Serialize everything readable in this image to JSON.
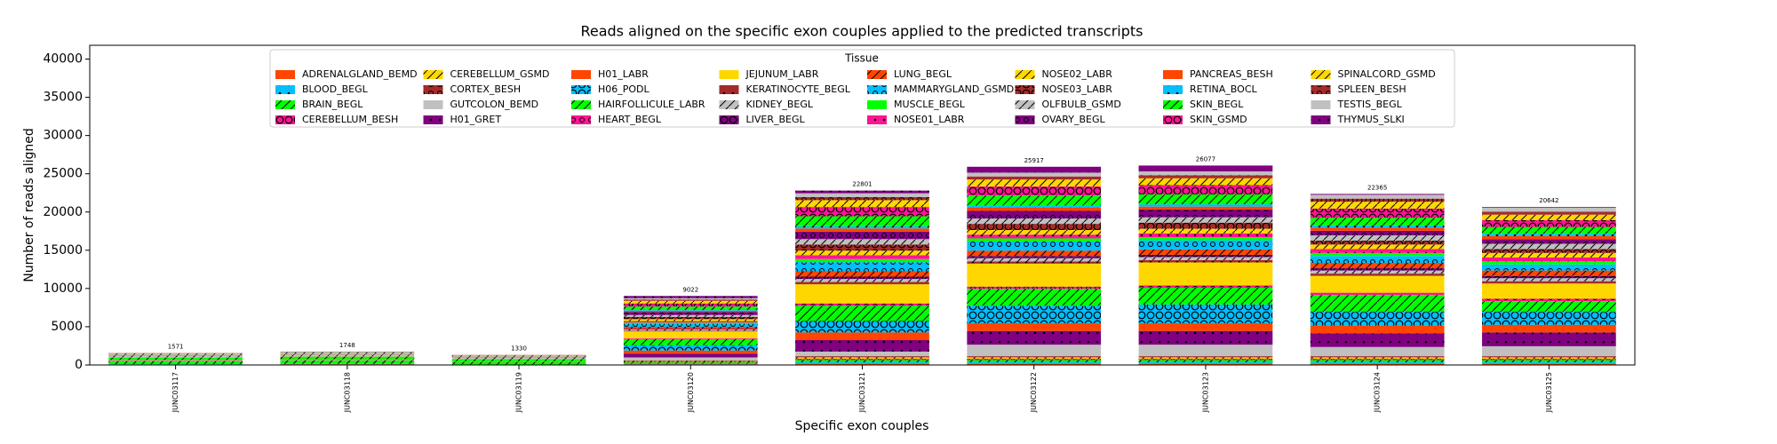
{
  "chart_data": {
    "type": "stacked_bar",
    "title": "Reads aligned on the specific exon couples applied to the predicted transcripts",
    "x_label": "Specific exon couples",
    "y_label": "Number of reads aligned",
    "legend_title": "Tissue",
    "categories": [
      "JUNC03117",
      "JUNC03118",
      "JUNC03119",
      "JUNC03120",
      "JUNC03121",
      "JUNC03122",
      "JUNC03123",
      "JUNC03124",
      "JUNC03125"
    ],
    "totals": [
      1571,
      1748,
      1330,
      9022,
      22801,
      25917,
      26077,
      22365,
      20642
    ],
    "ylim": [
      0,
      41800
    ],
    "yticks": [
      0,
      5000,
      10000,
      15000,
      20000,
      25000,
      30000,
      35000,
      40000
    ],
    "series": [
      {
        "name": "ADRENALGLAND_BEMD",
        "color": "#ff4500",
        "values": [
          50,
          100,
          10,
          100,
          200,
          200,
          200,
          200,
          200
        ]
      },
      {
        "name": "BLOOD_BEGL",
        "color": "#00bfff",
        "hatch": ".",
        "values": [
          40,
          40,
          40,
          80,
          150,
          150,
          150,
          150,
          150
        ]
      },
      {
        "name": "BRAIN_BEGL",
        "color": "#00ff00",
        "hatch": "/",
        "values": [
          400,
          450,
          300,
          150,
          300,
          300,
          300,
          300,
          300
        ]
      },
      {
        "name": "CEREBELLUM_BESH",
        "color": "#ff1493",
        "hatch": "O",
        "values": [
          30,
          30,
          30,
          80,
          150,
          150,
          150,
          150,
          150
        ]
      },
      {
        "name": "CEREBELLUM_GSMD",
        "color": "#ffd700",
        "hatch": "/",
        "values": [
          20,
          20,
          20,
          100,
          200,
          200,
          200,
          200,
          200
        ]
      },
      {
        "name": "CORTEX_BESH",
        "color": "#a52a2a",
        "hatch": "o",
        "values": [
          20,
          20,
          20,
          80,
          150,
          150,
          150,
          150,
          150
        ]
      },
      {
        "name": "GUTCOLON_BEMD",
        "color": "#c0c0c0",
        "values": [
          30,
          30,
          10,
          400,
          600,
          1500,
          1500,
          1200,
          1300
        ]
      },
      {
        "name": "H01_GRET",
        "color": "#800080",
        "hatch": ".",
        "values": [
          20,
          20,
          20,
          500,
          1500,
          1800,
          1800,
          1800,
          1800
        ]
      },
      {
        "name": "H01_LABR",
        "color": "#ff4500",
        "values": [
          40,
          40,
          40,
          400,
          1000,
          1000,
          1000,
          1000,
          1000
        ]
      },
      {
        "name": "H06_PODL",
        "color": "#00bfff",
        "hatch": "O",
        "values": [
          10,
          10,
          10,
          700,
          1500,
          2300,
          2460,
          1800,
          1700
        ]
      },
      {
        "name": "HAIRFOLLICULE_LABR",
        "color": "#00ff00",
        "hatch": "/",
        "values": [
          300,
          330,
          250,
          800,
          2000,
          2200,
          2200,
          2200,
          1400
        ]
      },
      {
        "name": "HEART_BEGL",
        "color": "#ff1493",
        "hatch": "o",
        "values": [
          20,
          20,
          20,
          100,
          300,
          300,
          300,
          300,
          300
        ]
      },
      {
        "name": "JEJUNUM_LABR",
        "color": "#ffd700",
        "values": [
          20,
          20,
          20,
          900,
          2500,
          3000,
          3000,
          2200,
          2000
        ]
      },
      {
        "name": "KERATINOCYTE_BEGL",
        "color": "#a52a2a",
        "hatch": ".",
        "values": [
          10,
          10,
          10,
          100,
          300,
          300,
          300,
          300,
          300
        ]
      },
      {
        "name": "KIDNEY_BEGL",
        "color": "#c0c0c0",
        "hatch": "/",
        "values": [
          200,
          220,
          180,
          150,
          400,
          400,
          400,
          400,
          400
        ]
      },
      {
        "name": "LIVER_BEGL",
        "color": "#800080",
        "hatch": "O",
        "values": [
          20,
          20,
          20,
          100,
          300,
          300,
          300,
          300,
          300
        ]
      },
      {
        "name": "LUNG_BEGL",
        "color": "#ff4500",
        "hatch": "/",
        "values": [
          30,
          30,
          30,
          250,
          700,
          700,
          700,
          700,
          700
        ]
      },
      {
        "name": "MAMMARYGLAND_GSMD",
        "color": "#00bfff",
        "hatch": "o",
        "values": [
          10,
          10,
          10,
          400,
          1200,
          1200,
          1200,
          900,
          800
        ]
      },
      {
        "name": "MUSCLE_BEGL",
        "color": "#00ff00",
        "values": [
          20,
          20,
          20,
          150,
          400,
          400,
          400,
          400,
          400
        ]
      },
      {
        "name": "NOSE01_LABR",
        "color": "#ff1493",
        "hatch": ".",
        "values": [
          10,
          10,
          10,
          200,
          500,
          500,
          500,
          500,
          500
        ]
      },
      {
        "name": "NOSE02_LABR",
        "color": "#ffd700",
        "hatch": "/",
        "values": [
          20,
          20,
          20,
          250,
          600,
          600,
          600,
          600,
          600
        ]
      },
      {
        "name": "NOSE03_LABR",
        "color": "#a52a2a",
        "hatch": "O",
        "values": [
          10,
          10,
          10,
          300,
          800,
          800,
          800,
          500,
          500
        ]
      },
      {
        "name": "OLFBULB_GSMD",
        "color": "#c0c0c0",
        "hatch": "/",
        "values": [
          130,
          150,
          120,
          250,
          700,
          700,
          700,
          700,
          700
        ]
      },
      {
        "name": "OVARY_BEGL",
        "color": "#800080",
        "hatch": "o",
        "values": [
          10,
          10,
          10,
          400,
          1000,
          1000,
          1000,
          600,
          600
        ]
      },
      {
        "name": "PANCREAS_BESH",
        "color": "#ff4500",
        "values": [
          10,
          10,
          10,
          150,
          400,
          400,
          400,
          400,
          400
        ]
      },
      {
        "name": "RETINA_BOCL",
        "color": "#00bfff",
        "hatch": ".",
        "values": [
          10,
          10,
          10,
          100,
          300,
          300,
          300,
          300,
          300
        ]
      },
      {
        "name": "SKIN_BEGL",
        "color": "#00ff00",
        "hatch": "/",
        "values": [
          20,
          20,
          20,
          450,
          1300,
          1300,
          1300,
          1000,
          900
        ]
      },
      {
        "name": "SKIN_GSMD",
        "color": "#ff1493",
        "hatch": "O",
        "values": [
          10,
          10,
          10,
          400,
          1200,
          1200,
          1200,
          1200,
          900
        ]
      },
      {
        "name": "SPINALCORD_GSMD",
        "color": "#ffd700",
        "hatch": "/",
        "values": [
          20,
          20,
          20,
          350,
          900,
          900,
          900,
          900,
          700
        ]
      },
      {
        "name": "SPLEEN_BESH",
        "color": "#a52a2a",
        "hatch": "o",
        "values": [
          10,
          10,
          10,
          150,
          400,
          400,
          400,
          400,
          400
        ]
      },
      {
        "name": "TESTIS_BEGL",
        "color": "#c0c0c0",
        "values": [
          10,
          10,
          10,
          200,
          500,
          500,
          500,
          500,
          500
        ]
      },
      {
        "name": "THYMUS_SLKI",
        "color": "#800080",
        "hatch": ".",
        "values": [
          11,
          18,
          10,
          282,
          351,
          767,
          767,
          115,
          92
        ]
      }
    ]
  }
}
